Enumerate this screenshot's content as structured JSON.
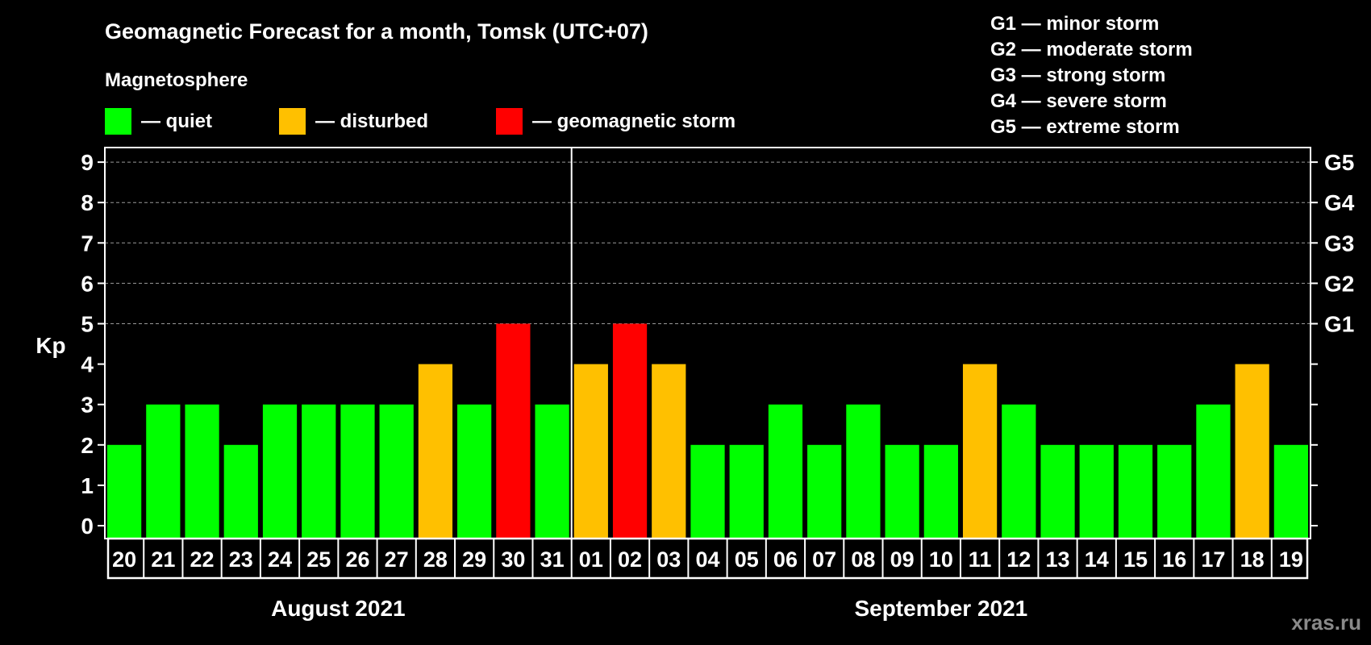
{
  "chart_data": {
    "type": "bar",
    "title": "Geomagnetic Forecast for a month, Tomsk (UTC+07)",
    "subtitle": "Magnetosphere",
    "ylabel": "Kp",
    "ylim": [
      0,
      9
    ],
    "yticks": [
      "0",
      "1",
      "2",
      "3",
      "4",
      "5",
      "6",
      "7",
      "8",
      "9"
    ],
    "right_ticks": [
      {
        "kp": 5,
        "label": "G1"
      },
      {
        "kp": 6,
        "label": "G2"
      },
      {
        "kp": 7,
        "label": "G3"
      },
      {
        "kp": 8,
        "label": "G4"
      },
      {
        "kp": 9,
        "label": "G5"
      }
    ],
    "grid": true,
    "categories": [
      "20",
      "21",
      "22",
      "23",
      "24",
      "25",
      "26",
      "27",
      "28",
      "29",
      "30",
      "31",
      "01",
      "02",
      "03",
      "04",
      "05",
      "06",
      "07",
      "08",
      "09",
      "10",
      "11",
      "12",
      "13",
      "14",
      "15",
      "16",
      "17",
      "18",
      "19"
    ],
    "values": [
      2,
      3,
      3,
      2,
      3,
      3,
      3,
      3,
      4,
      3,
      5,
      3,
      4,
      5,
      4,
      2,
      2,
      3,
      2,
      3,
      2,
      2,
      4,
      3,
      2,
      2,
      2,
      2,
      3,
      4,
      2
    ],
    "months": [
      {
        "label": "August 2021",
        "days": 12
      },
      {
        "label": "September 2021",
        "days": 19
      }
    ],
    "legend": [
      {
        "label": "— quiet",
        "color": "#00ff00"
      },
      {
        "label": "— disturbed",
        "color": "#ffc000"
      },
      {
        "label": "— geomagnetic storm",
        "color": "#ff0000"
      }
    ],
    "storm_scale": [
      "G1 — minor storm",
      "G2 — moderate storm",
      "G3 — strong storm",
      "G4 — severe storm",
      "G5 — extreme storm"
    ]
  },
  "watermark": "xras.ru"
}
